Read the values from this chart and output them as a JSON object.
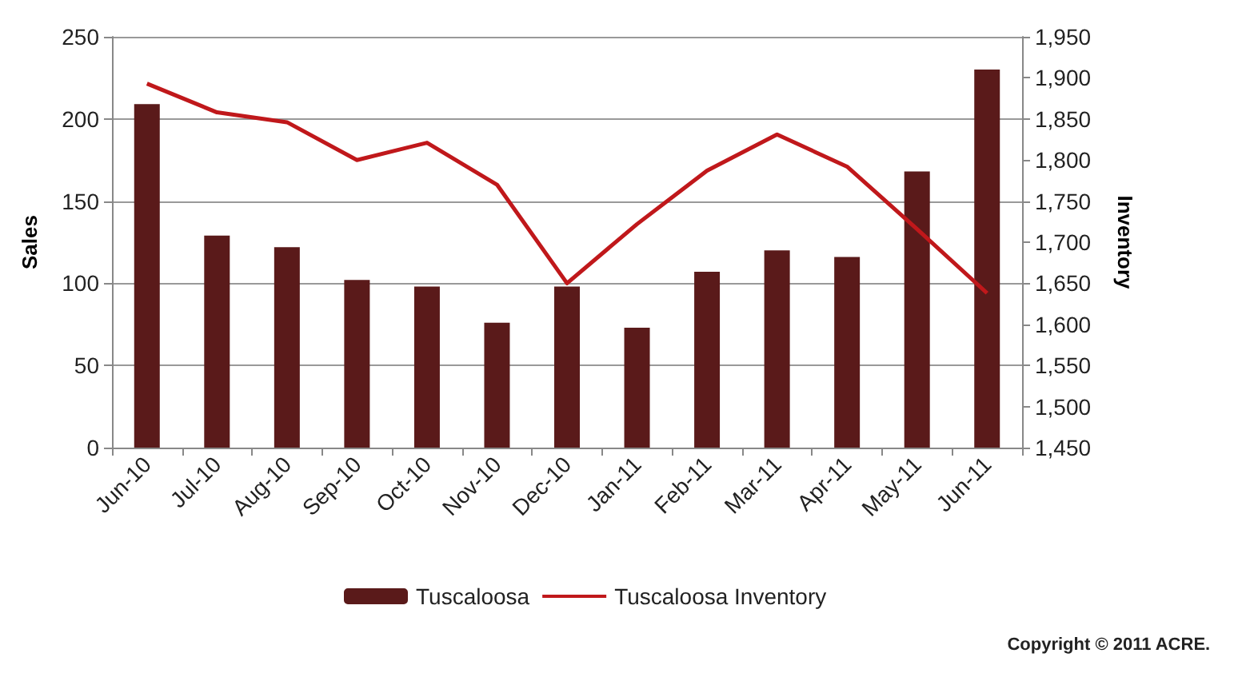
{
  "chart_data": {
    "type": "bar",
    "categories": [
      "Jun-10",
      "Jul-10",
      "Aug-10",
      "Sep-10",
      "Oct-10",
      "Nov-10",
      "Dec-10",
      "Jan-11",
      "Feb-11",
      "Mar-11",
      "Apr-11",
      "May-11",
      "Jun-11"
    ],
    "series": [
      {
        "name": "Tuscaloosa",
        "color": "#5a1a1a",
        "values": [
          209,
          129,
          122,
          102,
          98,
          76,
          98,
          73,
          107,
          120,
          116,
          168,
          230
        ]
      },
      {
        "name": "Tuscaloosa Inventory",
        "type": "line",
        "axis": "y2",
        "color": "#c0181b",
        "values": [
          1893,
          1858,
          1846,
          1800,
          1821,
          1770,
          1650,
          1722,
          1787,
          1831,
          1792,
          1716,
          1638
        ]
      }
    ],
    "ylabel": "Sales",
    "y2label": "Inventory",
    "ylim": [
      0,
      250
    ],
    "yticks": [
      0,
      50,
      100,
      150,
      200,
      250
    ],
    "y2lim": [
      1450,
      1950
    ],
    "y2ticks": [
      {
        "value": 1450,
        "label": "1,450"
      },
      {
        "value": 1500,
        "label": "1,500"
      },
      {
        "value": 1550,
        "label": "1,550"
      },
      {
        "value": 1600,
        "label": "1,600"
      },
      {
        "value": 1650,
        "label": "1,650"
      },
      {
        "value": 1700,
        "label": "1,700"
      },
      {
        "value": 1750,
        "label": "1,750"
      },
      {
        "value": 1800,
        "label": "1,800"
      },
      {
        "value": 1850,
        "label": "1,850"
      },
      {
        "value": 1900,
        "label": "1,900"
      },
      {
        "value": 1950,
        "label": "1,950"
      }
    ],
    "grid": "y",
    "legend": "bottom",
    "marker": "none",
    "annotations": [
      "Copyright © 2011 ACRE."
    ]
  }
}
